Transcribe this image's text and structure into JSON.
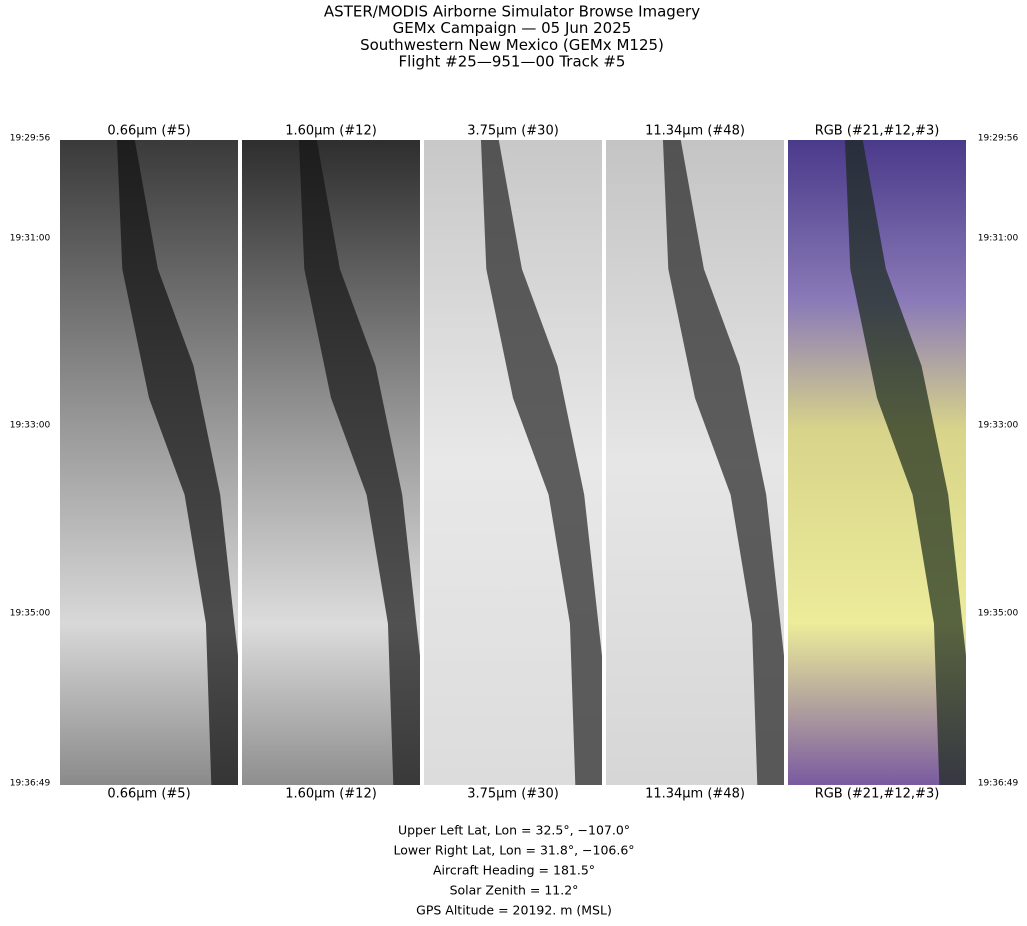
{
  "header": {
    "title": [
      "ASTER/MODIS Airborne Simulator Browse Imagery",
      "GEMx Campaign — 05 Jun 2025",
      "Southwestern New Mexico (GEMx M125)",
      "Flight #25—951—00 Track #5"
    ]
  },
  "panels": [
    {
      "label": "0.66µm (#5)"
    },
    {
      "label": "1.60µm (#12)"
    },
    {
      "label": "3.75µm (#30)"
    },
    {
      "label": "11.34µm (#48)"
    },
    {
      "label": "RGB (#21,#12,#3)"
    }
  ],
  "times": [
    "19:29:56",
    "19:31:00",
    "19:33:00",
    "19:35:00",
    "19:36:49"
  ],
  "info": [
    "Upper Left Lat, Lon =   32.5°, −107.0°",
    "Lower Right Lat, Lon =   31.8°, −106.6°",
    "Aircraft Heading =  181.5°",
    "Solar Zenith =   11.2°",
    "GPS Altitude =  20192. m (MSL)"
  ]
}
